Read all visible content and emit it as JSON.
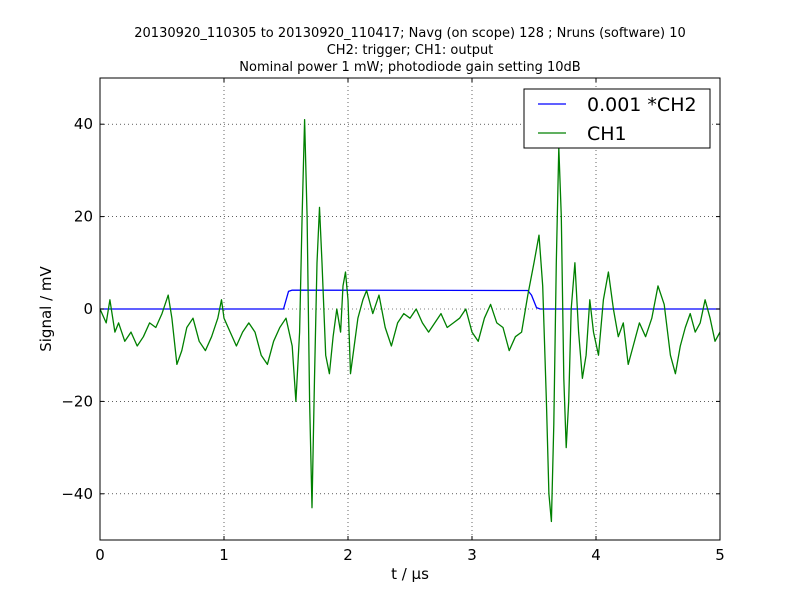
{
  "chart_data": {
    "type": "line",
    "title_lines": [
      "20130920_110305 to 20130920_110417; Navg (on scope) 128 ; Nruns (software) 10",
      "CH2: trigger; CH1: output",
      "Nominal power 1 mW; photodiode gain setting 10dB"
    ],
    "xlabel": "t / μs",
    "ylabel": "Signal / mV",
    "xlim": [
      0,
      5
    ],
    "ylim": [
      -50,
      50
    ],
    "x_ticks": [
      0,
      1,
      2,
      3,
      4,
      5
    ],
    "x_tick_labels": [
      "0",
      "1",
      "2",
      "3",
      "4",
      "5"
    ],
    "y_ticks": [
      -40,
      -20,
      0,
      20,
      40
    ],
    "y_tick_labels": [
      "−40",
      "−20",
      "0",
      "20",
      "40"
    ],
    "grid": true,
    "legend_position": "top-right",
    "series": [
      {
        "name": "0.001 *CH2",
        "color": "#0000ff",
        "points": [
          [
            0,
            0
          ],
          [
            1.48,
            0
          ],
          [
            1.52,
            3.8
          ],
          [
            1.55,
            4.1
          ],
          [
            3.45,
            4.0
          ],
          [
            3.48,
            3.0
          ],
          [
            3.52,
            0.3
          ],
          [
            3.55,
            0
          ],
          [
            5,
            0
          ]
        ]
      },
      {
        "name": "CH1",
        "color": "#008000",
        "points": [
          [
            0,
            0
          ],
          [
            0.05,
            -3
          ],
          [
            0.08,
            2
          ],
          [
            0.12,
            -5
          ],
          [
            0.15,
            -3
          ],
          [
            0.2,
            -7
          ],
          [
            0.25,
            -5
          ],
          [
            0.3,
            -8
          ],
          [
            0.35,
            -6
          ],
          [
            0.4,
            -3
          ],
          [
            0.45,
            -4
          ],
          [
            0.5,
            -1
          ],
          [
            0.55,
            3
          ],
          [
            0.58,
            -2
          ],
          [
            0.62,
            -12
          ],
          [
            0.66,
            -9
          ],
          [
            0.7,
            -4
          ],
          [
            0.75,
            -2
          ],
          [
            0.8,
            -7
          ],
          [
            0.85,
            -9
          ],
          [
            0.9,
            -6
          ],
          [
            0.95,
            -2
          ],
          [
            0.98,
            2
          ],
          [
            1.0,
            -2
          ],
          [
            1.05,
            -5
          ],
          [
            1.1,
            -8
          ],
          [
            1.15,
            -5
          ],
          [
            1.2,
            -3
          ],
          [
            1.25,
            -5
          ],
          [
            1.3,
            -10
          ],
          [
            1.35,
            -12
          ],
          [
            1.4,
            -7
          ],
          [
            1.45,
            -4
          ],
          [
            1.5,
            -2
          ],
          [
            1.55,
            -8
          ],
          [
            1.58,
            -20
          ],
          [
            1.61,
            -5
          ],
          [
            1.63,
            20
          ],
          [
            1.65,
            41
          ],
          [
            1.67,
            20
          ],
          [
            1.69,
            -20
          ],
          [
            1.71,
            -43
          ],
          [
            1.73,
            -15
          ],
          [
            1.75,
            10
          ],
          [
            1.77,
            22
          ],
          [
            1.79,
            10
          ],
          [
            1.82,
            -10
          ],
          [
            1.85,
            -14
          ],
          [
            1.88,
            -6
          ],
          [
            1.91,
            0
          ],
          [
            1.94,
            -5
          ],
          [
            1.96,
            5
          ],
          [
            1.98,
            8
          ],
          [
            2.0,
            2
          ],
          [
            2.02,
            -14
          ],
          [
            2.05,
            -8
          ],
          [
            2.08,
            -2
          ],
          [
            2.12,
            2
          ],
          [
            2.15,
            4
          ],
          [
            2.2,
            -1
          ],
          [
            2.25,
            3
          ],
          [
            2.3,
            -4
          ],
          [
            2.35,
            -8
          ],
          [
            2.4,
            -3
          ],
          [
            2.45,
            -1
          ],
          [
            2.5,
            -2
          ],
          [
            2.55,
            0
          ],
          [
            2.6,
            -3
          ],
          [
            2.65,
            -5
          ],
          [
            2.7,
            -3
          ],
          [
            2.75,
            -1
          ],
          [
            2.8,
            -4
          ],
          [
            2.85,
            -3
          ],
          [
            2.9,
            -2
          ],
          [
            2.95,
            0
          ],
          [
            3.0,
            -5
          ],
          [
            3.05,
            -7
          ],
          [
            3.1,
            -2
          ],
          [
            3.15,
            1
          ],
          [
            3.2,
            -3
          ],
          [
            3.25,
            -4
          ],
          [
            3.3,
            -9
          ],
          [
            3.35,
            -6
          ],
          [
            3.4,
            -5
          ],
          [
            3.45,
            3
          ],
          [
            3.5,
            10
          ],
          [
            3.54,
            16
          ],
          [
            3.57,
            5
          ],
          [
            3.6,
            -20
          ],
          [
            3.62,
            -40
          ],
          [
            3.64,
            -46
          ],
          [
            3.66,
            -25
          ],
          [
            3.68,
            10
          ],
          [
            3.7,
            35
          ],
          [
            3.72,
            20
          ],
          [
            3.74,
            -15
          ],
          [
            3.76,
            -30
          ],
          [
            3.78,
            -20
          ],
          [
            3.8,
            0
          ],
          [
            3.83,
            10
          ],
          [
            3.86,
            -5
          ],
          [
            3.89,
            -15
          ],
          [
            3.92,
            -10
          ],
          [
            3.95,
            2
          ],
          [
            3.98,
            -5
          ],
          [
            4.02,
            -10
          ],
          [
            4.06,
            2
          ],
          [
            4.1,
            8
          ],
          [
            4.14,
            0
          ],
          [
            4.18,
            -6
          ],
          [
            4.22,
            -3
          ],
          [
            4.26,
            -12
          ],
          [
            4.3,
            -8
          ],
          [
            4.35,
            -3
          ],
          [
            4.4,
            -6
          ],
          [
            4.45,
            -2
          ],
          [
            4.5,
            5
          ],
          [
            4.55,
            1
          ],
          [
            4.6,
            -10
          ],
          [
            4.64,
            -14
          ],
          [
            4.68,
            -8
          ],
          [
            4.72,
            -4
          ],
          [
            4.76,
            -1
          ],
          [
            4.8,
            -5
          ],
          [
            4.84,
            -3
          ],
          [
            4.88,
            2
          ],
          [
            4.92,
            -2
          ],
          [
            4.96,
            -7
          ],
          [
            5.0,
            -5
          ]
        ]
      }
    ]
  }
}
